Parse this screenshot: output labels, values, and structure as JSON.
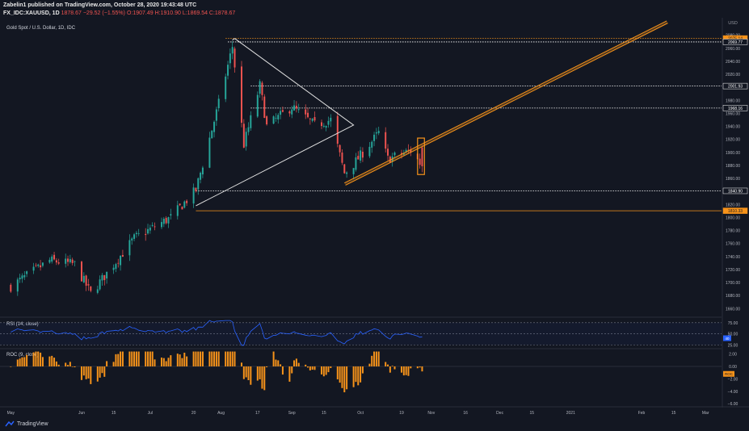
{
  "header": {
    "line1": "Zabelin1 published on TradingView.com, October 28, 2020 19:43:48 UTC",
    "symbol": "FX_IDC:XAUUSD, 1D",
    "price": "1878.67",
    "change": "−29.52 (−1.55%)",
    "ohlc": "O:1907.49 H:1910.90 L:1869.54 C:1878.67"
  },
  "footer": {
    "brand": "TradingView"
  },
  "chart_data": [
    {
      "type": "candlestick",
      "title": "Gold Spot / U.S. Dollar, 1D, IDC",
      "currency_label": "USD",
      "y_ticks": [
        1660,
        1680,
        1700,
        1720,
        1740,
        1760,
        1780,
        1800,
        1820,
        1840,
        1860,
        1880,
        1900,
        1920,
        1940,
        1960,
        1980,
        2000,
        2020,
        2040,
        2060,
        2080
      ],
      "ylim": [
        1648,
        2092
      ],
      "x_tick_labels": [
        "May",
        "Jun",
        "15",
        "Jul",
        "20",
        "Aug",
        "17",
        "Sep",
        "15",
        "Oct",
        "19",
        "Nov",
        "16",
        "Dec",
        "15",
        "2021",
        "Feb",
        "15",
        "Mar"
      ],
      "price_levels": [
        {
          "value": 2075.14,
          "label": "2075.14",
          "style": "dotted",
          "color": "#f7931a"
        },
        {
          "value": 2069.77,
          "label": "2069.77",
          "style": "dotted",
          "color": "#ffffff"
        },
        {
          "value": 2001.93,
          "label": "2001.93",
          "style": "dotted",
          "color": "#ffffff"
        },
        {
          "value": 1968.16,
          "label": "1968.16",
          "style": "dotted",
          "color": "#ffffff"
        },
        {
          "value": 1840.9,
          "label": "1840.90",
          "style": "dotted",
          "color": "#ffffff"
        },
        {
          "value": 1810.33,
          "label": "1810.33",
          "style": "solid",
          "color": "#f7931a"
        }
      ],
      "anchors": [
        {
          "date": "2020-05-01",
          "close": 1694
        },
        {
          "date": "2020-05-18",
          "close": 1734
        },
        {
          "date": "2020-05-29",
          "close": 1728
        },
        {
          "date": "2020-06-05",
          "close": 1683
        },
        {
          "date": "2020-06-24",
          "close": 1768
        },
        {
          "date": "2020-07-10",
          "close": 1800
        },
        {
          "date": "2020-07-21",
          "close": 1842
        },
        {
          "date": "2020-07-31",
          "close": 1975
        },
        {
          "date": "2020-08-06",
          "close": 2063
        },
        {
          "date": "2020-08-11",
          "close": 1912
        },
        {
          "date": "2020-08-18",
          "close": 2003
        },
        {
          "date": "2020-08-21",
          "close": 1940
        },
        {
          "date": "2020-09-01",
          "close": 1970
        },
        {
          "date": "2020-09-11",
          "close": 1942
        },
        {
          "date": "2020-09-18",
          "close": 1950
        },
        {
          "date": "2020-09-24",
          "close": 1868
        },
        {
          "date": "2020-09-28",
          "close": 1882
        },
        {
          "date": "2020-10-09",
          "close": 1930
        },
        {
          "date": "2020-10-13",
          "close": 1890
        },
        {
          "date": "2020-10-23",
          "close": 1903
        },
        {
          "date": "2020-10-28",
          "close": 1878.67
        }
      ],
      "triangle": {
        "apex": {
          "date": "2020-08-07",
          "price": 2075
        },
        "tip": {
          "date": "2020-09-28",
          "price": 1942
        },
        "base": {
          "date": "2020-07-21",
          "price": 1818
        }
      },
      "channel": {
        "start": {
          "date": "2020-09-24",
          "price": 1853
        },
        "end": {
          "date": "2021-02-12",
          "price": 2102
        },
        "color": "#f7931a"
      },
      "highlight_box": {
        "from": "2020-10-26",
        "to": "2020-10-29",
        "high": 1922,
        "low": 1866,
        "color": "#f7931a"
      },
      "up_color": "#26a69a",
      "down_color": "#ef5350"
    },
    {
      "type": "line",
      "title": "RSI (14, close)",
      "levels": [
        75,
        50,
        25
      ],
      "ylim": [
        20,
        82
      ],
      "badge": "40",
      "color": "#2962ff"
    },
    {
      "type": "histogram",
      "title": "ROC (9, close)",
      "y_ticks": [
        "2.00",
        "0.00",
        "−2.00",
        "−4.00",
        "−6.00"
      ],
      "ylim": [
        -6.5,
        2.6
      ],
      "badge": "ROC",
      "color": "#f7931a"
    }
  ]
}
